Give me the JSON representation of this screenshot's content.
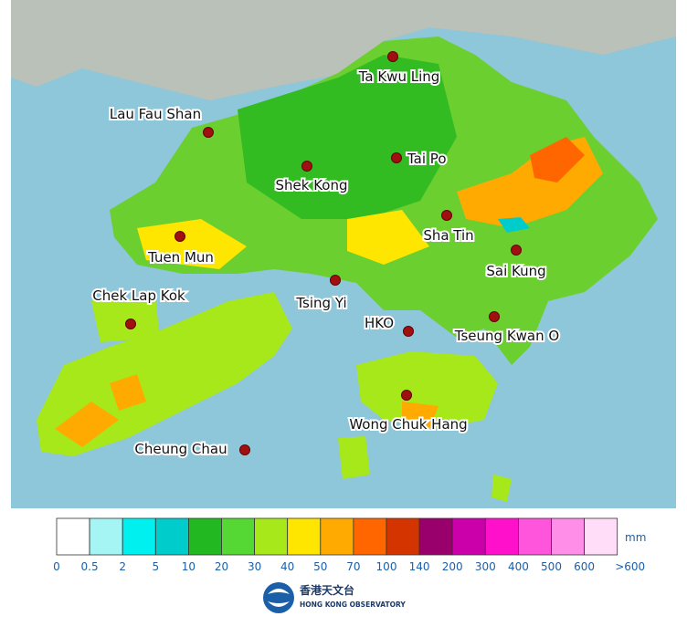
{
  "stations": [
    "Ta Kwu Ling",
    "Lau Fau Shan",
    "Shek Kong",
    "Tai Po",
    "Sha Tin",
    "Tuen Mun",
    "Sai Kung",
    "Tsing Yi",
    "Chek Lap Kok",
    "HKO",
    "Tseung Kwan O",
    "Wong Chuk Hang",
    "Cheung Chau"
  ],
  "legend": {
    "unit": "mm",
    "colors": [
      "#ffffff",
      "#a6f5f5",
      "#00f0f0",
      "#00cccc",
      "#22b822",
      "#55d833",
      "#a6e81a",
      "#ffe600",
      "#ffaa00",
      "#ff6600",
      "#d43500",
      "#99006b",
      "#cc00aa",
      "#ff11cc",
      "#ff55dd",
      "#ff8ee8",
      "#ffdcf7"
    ],
    "labels": [
      "0",
      "0.5",
      "2",
      "5",
      "10",
      "20",
      "30",
      "40",
      "50",
      "70",
      "100",
      "140",
      "200",
      "300",
      "400",
      "500",
      "600",
      ">600"
    ]
  },
  "logo": {
    "chinese": "香港天文台",
    "english": "HONG KONG OBSERVATORY"
  }
}
